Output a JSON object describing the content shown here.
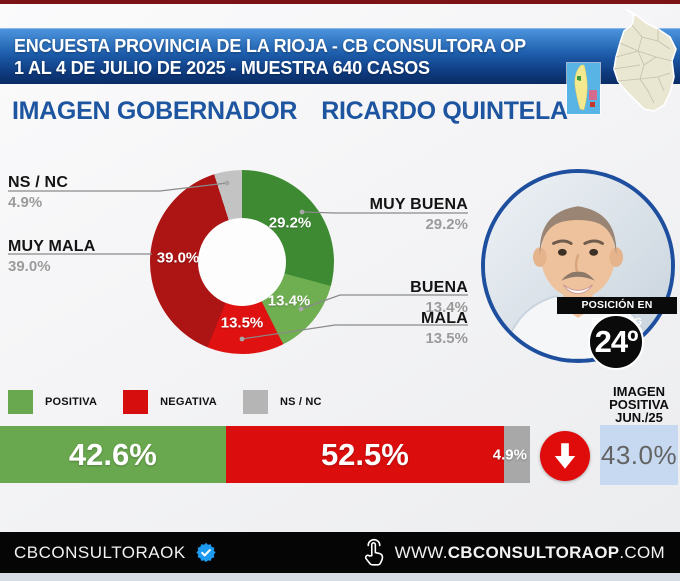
{
  "header": {
    "line1": "ENCUESTA PROVINCIA DE LA RIOJA - CB CONSULTORA OP",
    "line2": "1 AL 4 DE JULIO DE 2025 - MUESTRA 640 CASOS"
  },
  "title": {
    "section": "IMAGEN GOBERNADOR",
    "person": "RICARDO QUINTELA"
  },
  "chart_data": [
    {
      "type": "pie",
      "subtype": "donut",
      "title": "Imagen Gobernador Ricardo Quintela",
      "labels": [
        "MUY BUENA",
        "BUENA",
        "MALA",
        "MUY MALA",
        "NS / NC"
      ],
      "values": [
        29.2,
        13.4,
        13.5,
        39.0,
        4.9
      ],
      "display_values": [
        "29.2%",
        "13.4%",
        "13.5%",
        "39.0%",
        "4.9%"
      ],
      "colors": [
        "#3e8a33",
        "#6fae51",
        "#e01111",
        "#ad1414",
        "#c3c3c3"
      ],
      "callouts": [
        {
          "label": "MUY BUENA",
          "value": "29.2%"
        },
        {
          "label": "BUENA",
          "value": "13.4%"
        },
        {
          "label": "MALA",
          "value": "13.5%"
        },
        {
          "label": "MUY MALA",
          "value": "39.0%"
        },
        {
          "label": "NS / NC",
          "value": "4.9%"
        }
      ],
      "start_angle_deg": 0,
      "direction": "clockwise"
    },
    {
      "type": "bar",
      "subtype": "stacked-horizontal",
      "categories": [
        "POSITIVA",
        "NEGATIVA",
        "NS / NC"
      ],
      "values": [
        42.6,
        52.5,
        4.9
      ],
      "display_values": [
        "42.6%",
        "52.5%",
        "4.9%"
      ],
      "colors": [
        "#6aa84f",
        "#dc0d0d",
        "#a8a8a8"
      ],
      "xlim": [
        0,
        100
      ]
    }
  ],
  "legend": {
    "items": [
      {
        "label": "POSITIVA",
        "color": "#6aa84f"
      },
      {
        "label": "NEGATIVA",
        "color": "#d60e0e"
      },
      {
        "label": "NS / NC",
        "color": "#b5b5b5"
      }
    ]
  },
  "ranking": {
    "label": "POSICIÓN EN RANKING",
    "value": "24º"
  },
  "previous": {
    "heading": "IMAGEN\nPOSITIVA\nJUN./25",
    "value": "43.0%"
  },
  "trend": {
    "direction": "down",
    "color": "#e00b0b"
  },
  "footer": {
    "handle": "CBCONSULTORAOK",
    "website_prefix": "WWW.",
    "website_name": "CBCONSULTORAOP",
    "website_suffix": ".COM"
  }
}
